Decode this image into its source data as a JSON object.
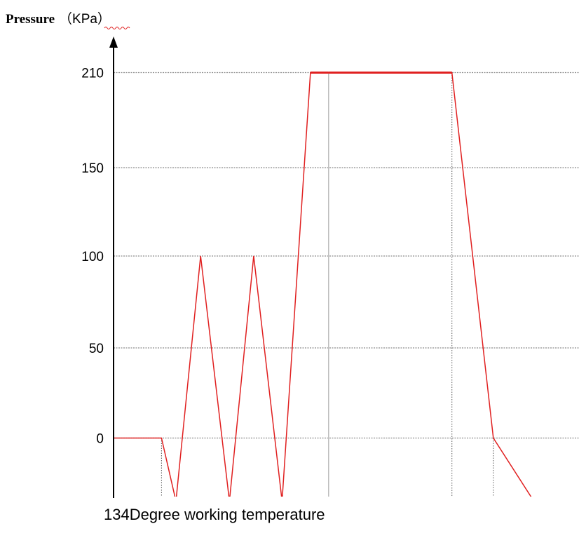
{
  "chart_data": {
    "type": "line",
    "ylabel": "Pressure",
    "ylabel_unit": "（KPa）",
    "xlabel": "134Degree working temperature",
    "yticks": [
      "210",
      "150",
      "100",
      "50",
      "0"
    ],
    "ytick_values": [
      210,
      150,
      100,
      50,
      0
    ],
    "ylim": [
      -35,
      215
    ],
    "xlim": [
      0,
      100
    ],
    "grid": true,
    "series": [
      {
        "color": "#e02020",
        "x": [
          0,
          10.3,
          13.4,
          18.7,
          24.9,
          30.1,
          36.2,
          42.3,
          46.2,
          72.7,
          81.6,
          90.3
        ],
        "y": [
          0,
          0,
          -35,
          100,
          -35,
          100,
          -35,
          210,
          210,
          210,
          0,
          -35
        ]
      }
    ],
    "vertical_guides": [
      10.3,
      46.2,
      72.7,
      81.6
    ]
  }
}
